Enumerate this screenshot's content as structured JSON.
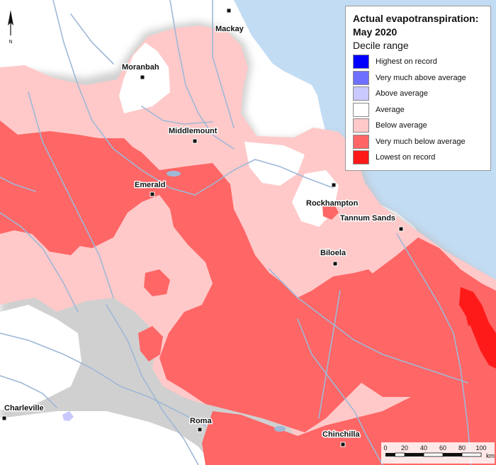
{
  "legend": {
    "title_line1": "Actual evapotranspiration:",
    "title_line2": "May 2020",
    "subtitle": "Decile range",
    "items": [
      {
        "label": "Highest on record",
        "color": "#0000ff"
      },
      {
        "label": "Very much above average",
        "color": "#6f6fff"
      },
      {
        "label": "Above average",
        "color": "#c9c9ff"
      },
      {
        "label": "Average",
        "color": "#ffffff"
      },
      {
        "label": "Below average",
        "color": "#ffc9c9"
      },
      {
        "label": "Very much below average",
        "color": "#ff6666"
      },
      {
        "label": "Lowest on record",
        "color": "#ff1a1a"
      }
    ]
  },
  "towns": {
    "mackay": "Mackay",
    "moranbah": "Moranbah",
    "middlemount": "Middlemount",
    "emerald": "Emerald",
    "rockhampton": "Rockhampton",
    "tannum_sands": "Tannum Sands",
    "biloela": "Biloela",
    "charleville": "Charleville",
    "roma": "Roma",
    "chinchilla": "Chinchilla"
  },
  "north_arrow": {
    "label": "N"
  },
  "scale": {
    "ticks": [
      "0",
      "20",
      "40",
      "60",
      "80",
      "100"
    ],
    "unit": "km"
  },
  "colors": {
    "sea": "#c2dcf3",
    "land": "#ffffff",
    "river": "#9fb8d6",
    "below_average": "#ffc9c9",
    "very_much_below": "#ff6666",
    "lowest": "#ff1a1a",
    "above_average": "#c9c9ff"
  }
}
